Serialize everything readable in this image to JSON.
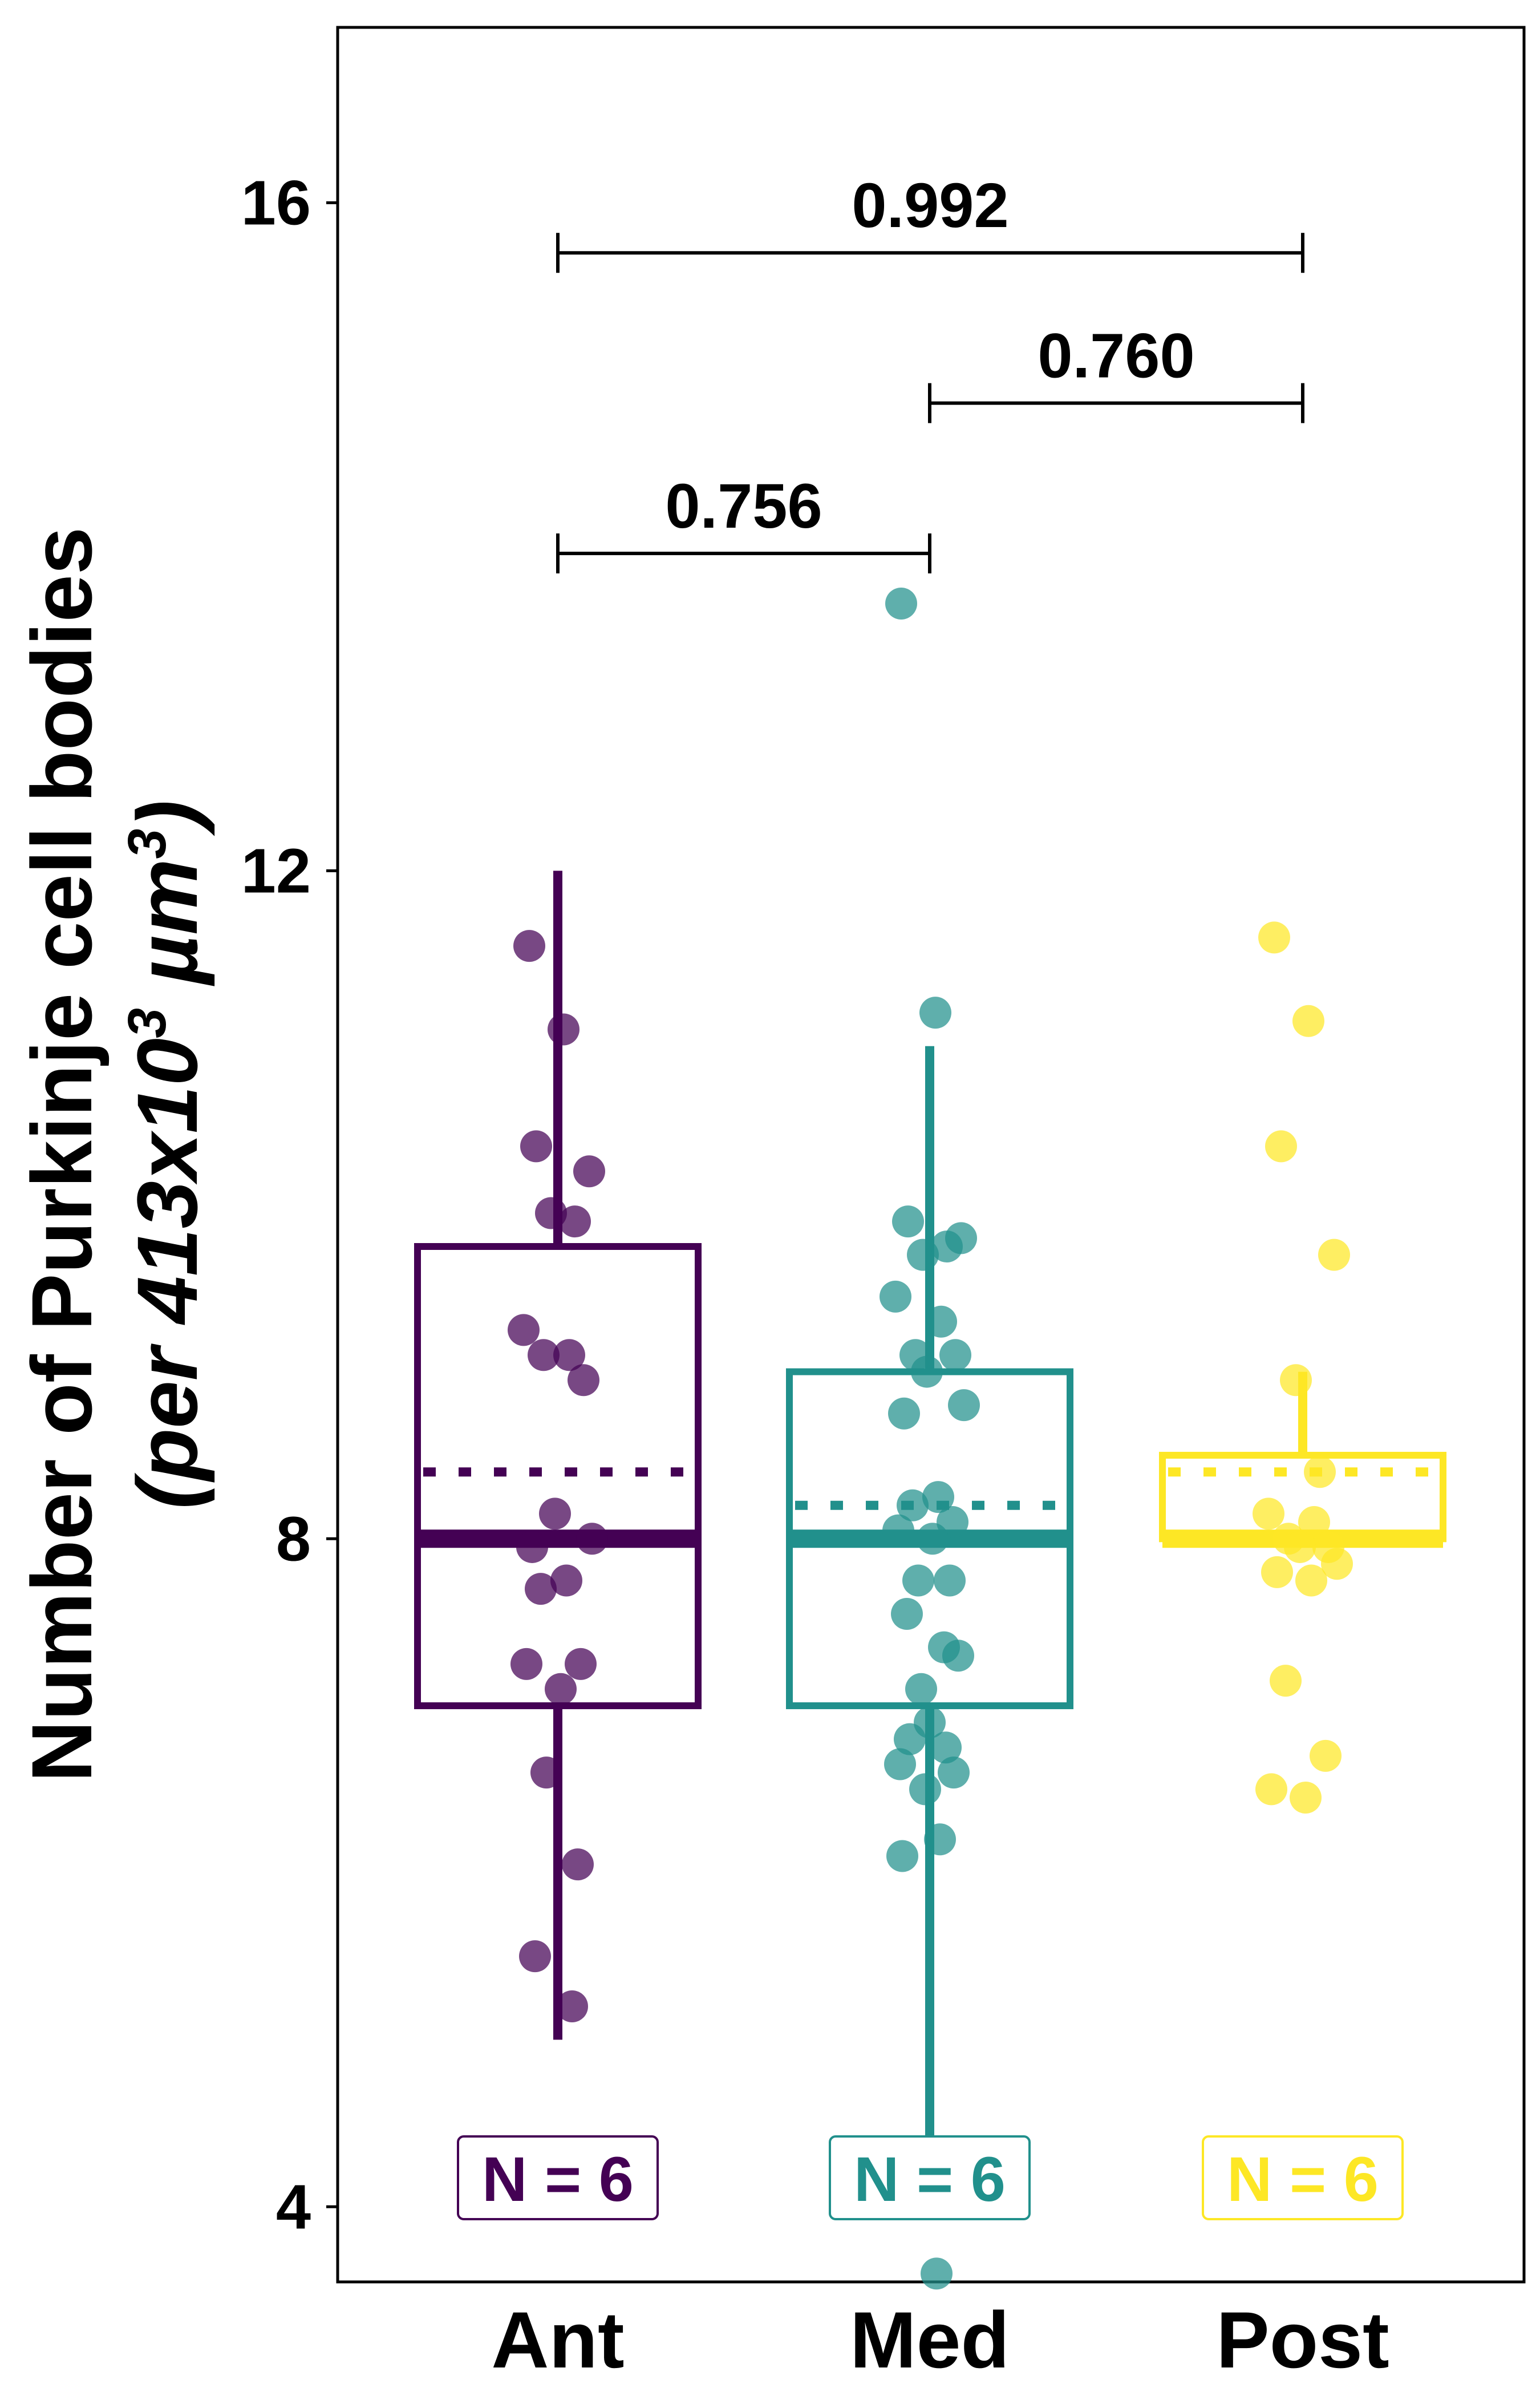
{
  "chart_data": {
    "type": "box",
    "ylabel_line1": "Number of Purkinje cell bodies",
    "ylabel_line2_prefix": "(per 413x10",
    "ylabel_line2_sup1": "3",
    "ylabel_line2_unit": " µm",
    "ylabel_line2_sup2": "3",
    "ylabel_line2_suffix": ")",
    "ylim": [
      3.55,
      17.05
    ],
    "yticks": [
      4,
      8,
      12,
      16
    ],
    "categories": [
      "Ant",
      "Med",
      "Post"
    ],
    "colors": [
      "#440154",
      "#21908c",
      "#fde725"
    ],
    "boxes": [
      {
        "name": "Ant",
        "whisker_low": 5.0,
        "q1": 7.0,
        "median": 8.0,
        "mean": 8.4,
        "q3": 9.75,
        "whisker_high": 12.0,
        "points": [
          11.55,
          11.05,
          10.35,
          10.2,
          9.95,
          9.9,
          9.25,
          9.1,
          9.1,
          8.95,
          8.15,
          8.0,
          7.95,
          7.75,
          7.7,
          7.25,
          7.25,
          7.1,
          6.6,
          6.05,
          5.5,
          5.2
        ]
      },
      {
        "name": "Med",
        "whisker_low": 4.0,
        "q1": 7.0,
        "median": 8.0,
        "mean": 8.2,
        "q3": 9.0,
        "whisker_high": 10.95,
        "points": [
          13.6,
          11.15,
          9.9,
          9.8,
          9.7,
          9.75,
          9.45,
          9.3,
          9.1,
          9.1,
          9.0,
          8.8,
          8.75,
          8.25,
          8.2,
          8.1,
          8.05,
          8.0,
          7.75,
          7.75,
          7.55,
          7.35,
          7.3,
          7.1,
          6.9,
          6.8,
          6.75,
          6.65,
          6.6,
          6.5,
          6.2,
          6.1,
          3.6
        ]
      },
      {
        "name": "Post",
        "whisker_low": 8.0,
        "q1": 8.0,
        "median": 8.0,
        "mean": 8.4,
        "q3": 8.5,
        "whisker_high": 9.0,
        "points": [
          11.6,
          11.1,
          10.35,
          9.7,
          8.95,
          8.4,
          8.15,
          8.1,
          8.0,
          7.95,
          7.95,
          7.85,
          7.8,
          7.75,
          7.15,
          6.7,
          6.5,
          6.45
        ]
      }
    ],
    "comparisons": [
      {
        "from": "Ant",
        "to": "Post",
        "label": "0.992",
        "y": 15.7
      },
      {
        "from": "Med",
        "to": "Post",
        "label": "0.760",
        "y": 14.8
      },
      {
        "from": "Ant",
        "to": "Med",
        "label": "0.756",
        "y": 13.9
      }
    ],
    "n_labels": [
      "N = 6",
      "N = 6",
      "N = 6"
    ]
  }
}
